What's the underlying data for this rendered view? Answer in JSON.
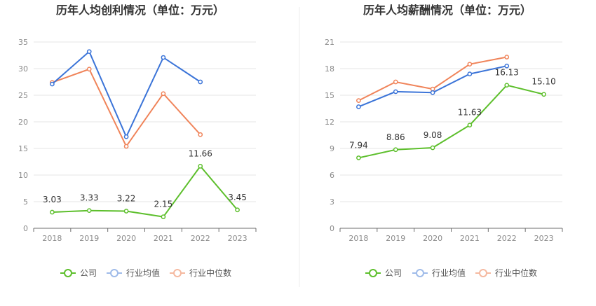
{
  "chart_data": [
    {
      "type": "line",
      "title": "历年人均创利情况（单位：万元）",
      "categories": [
        "2018",
        "2019",
        "2020",
        "2021",
        "2022",
        "2023"
      ],
      "ylim": [
        0,
        35
      ],
      "yticks": [
        "0",
        "5",
        "10",
        "15",
        "20",
        "25",
        "30",
        "35"
      ],
      "grid": true,
      "legend_position": "bottom",
      "series": [
        {
          "name": "公司",
          "color": "#5dbf2c",
          "values": [
            3.03,
            3.33,
            3.22,
            2.15,
            11.66,
            3.45
          ],
          "labels": [
            "3.03",
            "3.33",
            "3.22",
            "2.15",
            "11.66",
            "3.45"
          ]
        },
        {
          "name": "行业均值",
          "color": "#3b74d8",
          "values": [
            27.1,
            33.2,
            17.2,
            32.1,
            27.5,
            null
          ]
        },
        {
          "name": "行业中位数",
          "color": "#f0845a",
          "values": [
            27.4,
            29.9,
            15.4,
            25.3,
            17.6,
            null
          ]
        }
      ]
    },
    {
      "type": "line",
      "title": "历年人均薪酬情况（单位：万元）",
      "categories": [
        "2018",
        "2019",
        "2020",
        "2021",
        "2022",
        "2023"
      ],
      "ylim": [
        0,
        21
      ],
      "yticks": [
        "0",
        "3",
        "6",
        "9",
        "12",
        "15",
        "18",
        "21"
      ],
      "grid": true,
      "legend_position": "bottom",
      "series": [
        {
          "name": "公司",
          "color": "#5dbf2c",
          "values": [
            7.94,
            8.86,
            9.08,
            11.63,
            16.13,
            15.1
          ],
          "labels": [
            "7.94",
            "8.86",
            "9.08",
            "11.63",
            "16.13",
            "15.10"
          ]
        },
        {
          "name": "行业均值",
          "color": "#3b74d8",
          "values": [
            13.7,
            15.4,
            15.3,
            17.4,
            18.3,
            null
          ]
        },
        {
          "name": "行业中位数",
          "color": "#f0845a",
          "values": [
            14.4,
            16.5,
            15.7,
            18.5,
            19.3,
            null
          ]
        }
      ]
    }
  ],
  "legend": {
    "company": "公司",
    "industry_avg": "行业均值",
    "industry_median": "行业中位数"
  }
}
